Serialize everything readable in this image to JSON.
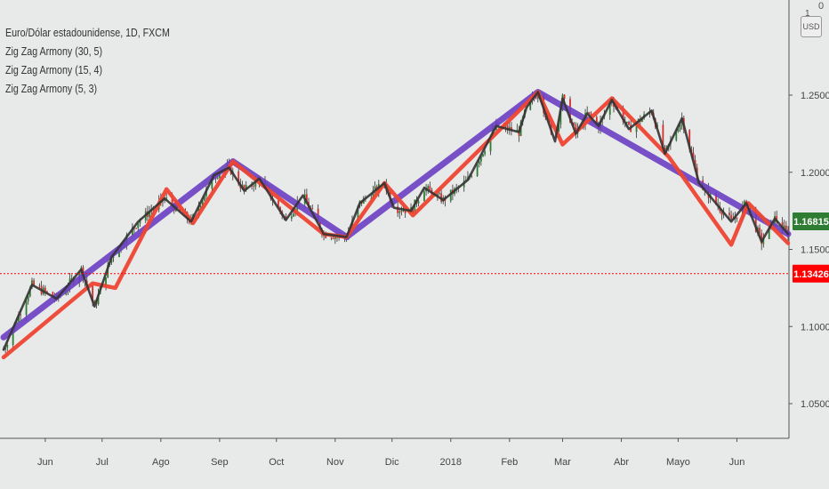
{
  "chart_data": {
    "type": "line",
    "title": "Euro/Dólar estadounidense, 1D, FXCM",
    "legend_entries": [
      "Zig Zag Armony (30, 5)",
      "Zig Zag Armony (15, 4)",
      "Zig Zag Armony (5, 3)"
    ],
    "x_tick_labels": [
      "Jun",
      "Jul",
      "Ago",
      "Sep",
      "Oct",
      "Nov",
      "Dic",
      "2018",
      "Feb",
      "Mar",
      "Abr",
      "Mayo",
      "Jun"
    ],
    "y_tick_labels": [
      "1.05000",
      "1.10000",
      "1.15000",
      "1.20000",
      "1.25000"
    ],
    "ylim": [
      1.025,
      1.285
    ],
    "y_ticks": [
      1.05,
      1.1,
      1.15,
      1.2,
      1.25
    ],
    "currency_label": "USD",
    "top_labels": [
      "0",
      "1"
    ],
    "last_price": 1.16815,
    "last_price_label": "1.16815",
    "last_price_color": "#2e7d32",
    "ref_price": 1.13426,
    "ref_price_label": "1.13426",
    "ref_price_color": "#ff0000",
    "series": [
      {
        "name": "Zig Zag Armony (30, 5)",
        "color": "#6a3fc4",
        "x": [
          "2017-05-10",
          "2017-09-08",
          "2017-11-07",
          "2018-02-16",
          "2018-06-28"
        ],
        "y": [
          1.093,
          1.207,
          1.158,
          1.252,
          1.16
        ]
      },
      {
        "name": "Zig Zag Armony (15, 4)",
        "color": "#ee4433",
        "x": [
          "2017-05-10",
          "2017-06-26",
          "2017-07-08",
          "2017-08-04",
          "2017-08-18",
          "2017-09-08",
          "2017-10-26",
          "2017-11-07",
          "2017-11-27",
          "2017-12-12",
          "2018-02-16",
          "2018-03-01",
          "2018-03-27",
          "2018-04-26",
          "2018-05-29",
          "2018-06-07",
          "2018-06-28"
        ],
        "y": [
          1.08,
          1.128,
          1.125,
          1.189,
          1.167,
          1.207,
          1.16,
          1.158,
          1.193,
          1.172,
          1.252,
          1.218,
          1.248,
          1.21,
          1.153,
          1.18,
          1.154
        ]
      },
      {
        "name": "Zig Zag Armony (5, 3)",
        "color": "#333333",
        "x": [
          "2017-05-10",
          "2017-05-25",
          "2017-06-07",
          "2017-06-20",
          "2017-06-27",
          "2017-07-06",
          "2017-07-20",
          "2017-08-03",
          "2017-08-17",
          "2017-08-29",
          "2017-09-06",
          "2017-09-14",
          "2017-09-22",
          "2017-10-06",
          "2017-10-15",
          "2017-10-26",
          "2017-11-07",
          "2017-11-14",
          "2017-11-27",
          "2017-12-02",
          "2017-12-11",
          "2017-12-18",
          "2017-12-28",
          "2018-01-10",
          "2018-01-25",
          "2018-02-06",
          "2018-02-10",
          "2018-02-16",
          "2018-02-25",
          "2018-03-01",
          "2018-03-08",
          "2018-03-14",
          "2018-03-20",
          "2018-03-27",
          "2018-04-05",
          "2018-04-17",
          "2018-04-24",
          "2018-05-03",
          "2018-05-12",
          "2018-05-29",
          "2018-06-06",
          "2018-06-14",
          "2018-06-21",
          "2018-06-28"
        ],
        "y": [
          1.085,
          1.127,
          1.118,
          1.137,
          1.113,
          1.145,
          1.168,
          1.183,
          1.168,
          1.198,
          1.203,
          1.188,
          1.196,
          1.169,
          1.185,
          1.16,
          1.158,
          1.18,
          1.193,
          1.177,
          1.175,
          1.19,
          1.182,
          1.195,
          1.23,
          1.226,
          1.242,
          1.252,
          1.22,
          1.248,
          1.225,
          1.238,
          1.23,
          1.247,
          1.228,
          1.24,
          1.212,
          1.235,
          1.193,
          1.168,
          1.18,
          1.155,
          1.17,
          1.16
        ]
      }
    ]
  }
}
